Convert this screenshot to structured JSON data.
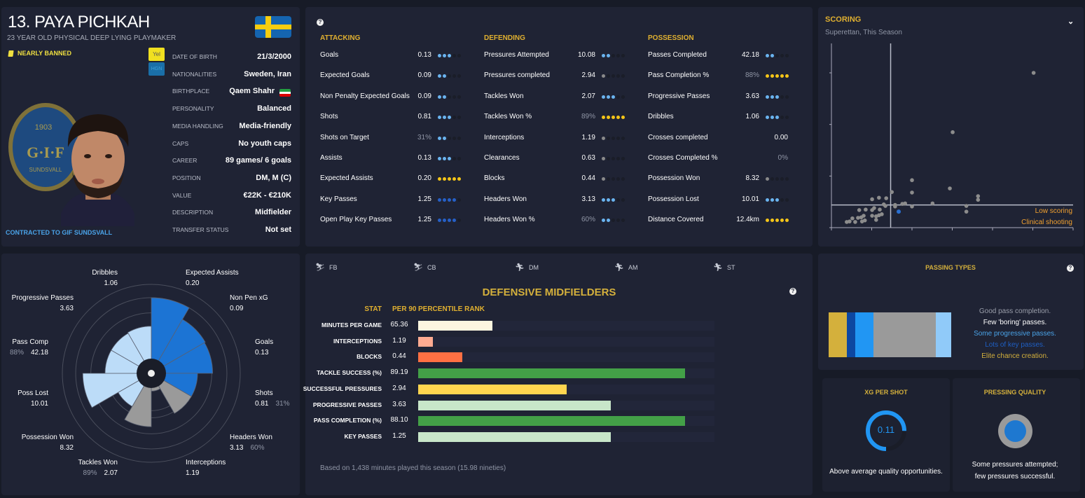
{
  "player": {
    "name": "13. PAYA PICHKAH",
    "subtitle": "23 YEAR OLD PHYSICAL DEEP LYING PLAYMAKER",
    "status": "NEARLY BANNED",
    "badges": [
      "Yel",
      "HGN"
    ],
    "contract": "CONTRACTED TO GIF SUNDSVALL",
    "club_badge_text": [
      "1903",
      "G·I·F",
      "SUNDSVALL"
    ],
    "info": [
      {
        "label": "DATE OF BIRTH",
        "value": "21/3/2000"
      },
      {
        "label": "NATIONALITIES",
        "value": "Sweden, Iran"
      },
      {
        "label": "BIRTHPLACE",
        "value": "Qaem Shahr"
      },
      {
        "label": "PERSONALITY",
        "value": "Balanced"
      },
      {
        "label": "MEDIA HANDLING",
        "value": "Media-friendly"
      },
      {
        "label": "CAPS",
        "value": "No youth caps"
      },
      {
        "label": "CAREER",
        "value": "89   games/    6 goals"
      },
      {
        "label": "POSITION",
        "value": "DM, M (C)"
      },
      {
        "label": "VALUE",
        "value": "€22K - €210K"
      },
      {
        "label": "DESCRIPTION",
        "value": "Midfielder"
      },
      {
        "label": "TRANSFER STATUS",
        "value": "Not set"
      }
    ]
  },
  "colors": {
    "lightblue": "#6ab4f0",
    "gold": "#f5c518",
    "grey": "#8a8a8a",
    "darkblue": "#2660c8"
  },
  "stats": {
    "help": "?",
    "columns": [
      {
        "title": "ATTACKING",
        "rows": [
          {
            "label": "Goals",
            "value": "0.13",
            "rating": 3,
            "tier": "lightblue"
          },
          {
            "label": "Expected Goals",
            "value": "0.09",
            "rating": 2,
            "tier": "lightblue"
          },
          {
            "label": "Non Penalty Expected Goals",
            "value": "0.09",
            "rating": 2,
            "tier": "lightblue"
          },
          {
            "label": "Shots",
            "value": "0.81",
            "rating": 3,
            "tier": "lightblue"
          },
          {
            "label": "Shots on Target",
            "value": "31%",
            "muted": true,
            "rating": 2,
            "tier": "lightblue"
          },
          {
            "label": "Assists",
            "value": "0.13",
            "rating": 3,
            "tier": "lightblue"
          },
          {
            "label": "Expected Assists",
            "value": "0.20",
            "rating": 5,
            "tier": "gold"
          },
          {
            "label": "Key Passes",
            "value": "1.25",
            "rating": 4,
            "tier": "darkblue"
          },
          {
            "label": "Open Play Key Passes",
            "value": "1.25",
            "rating": 4,
            "tier": "darkblue"
          }
        ]
      },
      {
        "title": "DEFENDING",
        "rows": [
          {
            "label": "Pressures Attempted",
            "value": "10.08",
            "rating": 2,
            "tier": "lightblue"
          },
          {
            "label": "Pressures completed",
            "value": "2.94",
            "rating": 1,
            "tier": "grey"
          },
          {
            "label": "Tackles Won",
            "value": "2.07",
            "rating": 3,
            "tier": "lightblue"
          },
          {
            "label": "Tackles Won %",
            "value": "89%",
            "muted": true,
            "rating": 5,
            "tier": "gold"
          },
          {
            "label": "Interceptions",
            "value": "1.19",
            "rating": 1,
            "tier": "grey"
          },
          {
            "label": "Clearances",
            "value": "0.63",
            "rating": 1,
            "tier": "grey"
          },
          {
            "label": "Blocks",
            "value": "0.44",
            "rating": 1,
            "tier": "grey"
          },
          {
            "label": "Headers Won",
            "value": "3.13",
            "rating": 3,
            "tier": "lightblue"
          },
          {
            "label": "Headers Won %",
            "value": "60%",
            "muted": true,
            "rating": 2,
            "tier": "lightblue"
          }
        ]
      },
      {
        "title": "POSSESSION",
        "rows": [
          {
            "label": "Passes Completed",
            "value": "42.18",
            "rating": 2,
            "tier": "lightblue"
          },
          {
            "label": "Pass Completion %",
            "value": "88%",
            "muted": true,
            "rating": 5,
            "tier": "gold"
          },
          {
            "label": "Progressive Passes",
            "value": "3.63",
            "rating": 3,
            "tier": "lightblue"
          },
          {
            "label": "Dribbles",
            "value": "1.06",
            "rating": 3,
            "tier": "lightblue"
          },
          {
            "label": "Crosses completed",
            "value": "0.00",
            "rating": 0,
            "tier": "none"
          },
          {
            "label": "Crosses Completed %",
            "value": "0%",
            "muted": true,
            "rating": 0,
            "tier": "none"
          },
          {
            "label": "Possession Won",
            "value": "8.32",
            "rating": 1,
            "tier": "grey"
          },
          {
            "label": "Possession Lost",
            "value": "10.01",
            "rating": 3,
            "tier": "lightblue"
          },
          {
            "label": "Distance Covered",
            "value": "12.4km",
            "rating": 5,
            "tier": "gold"
          }
        ]
      }
    ]
  },
  "scoring": {
    "title": "SCORING",
    "subtitle": "Superettan, This Season",
    "quadrant_labels": [
      "Low scoring",
      "Clinical shooting"
    ]
  },
  "chart_data": [
    {
      "type": "scatter",
      "title": "SCORING",
      "xlim": [
        0,
        6
      ],
      "ylim": [
        0,
        3.57
      ],
      "x_ticks": [
        0,
        1,
        2,
        3,
        4,
        5,
        6
      ],
      "y_ticks": [
        0,
        1,
        2,
        3
      ],
      "reference_x": 1.47,
      "reference_y": 0.44,
      "points": [
        [
          5.02,
          3.0
        ],
        [
          3.01,
          1.85
        ],
        [
          2.0,
          0.92
        ],
        [
          2.0,
          0.68
        ],
        [
          2.94,
          0.76
        ],
        [
          3.64,
          0.61
        ],
        [
          3.64,
          0.54
        ],
        [
          3.35,
          0.42
        ],
        [
          3.35,
          0.31
        ],
        [
          2.51,
          0.47
        ],
        [
          2.0,
          0.41
        ],
        [
          1.83,
          0.47
        ],
        [
          1.76,
          0.46
        ],
        [
          1.58,
          0.41
        ],
        [
          1.58,
          0.44
        ],
        [
          1.5,
          0.69
        ],
        [
          1.36,
          0.57
        ],
        [
          1.18,
          0.58
        ],
        [
          1.01,
          0.55
        ],
        [
          1.3,
          0.45
        ],
        [
          1.34,
          0.42
        ],
        [
          1.06,
          0.38
        ],
        [
          1.01,
          0.34
        ],
        [
          1.2,
          0.35
        ],
        [
          0.85,
          0.35
        ],
        [
          0.69,
          0.34
        ],
        [
          1.25,
          0.26
        ],
        [
          1.18,
          0.24
        ],
        [
          1.11,
          0.22
        ],
        [
          1.01,
          0.23
        ],
        [
          1.11,
          0.15
        ],
        [
          0.8,
          0.23
        ],
        [
          0.74,
          0.2
        ],
        [
          0.66,
          0.19
        ],
        [
          0.83,
          0.14
        ],
        [
          0.76,
          0.12
        ],
        [
          0.52,
          0.18
        ],
        [
          0.59,
          0.11
        ],
        [
          0.45,
          0.12
        ],
        [
          0.38,
          0.11
        ]
      ],
      "highlight": [
        1.67,
        0.31
      ]
    },
    {
      "type": "pie",
      "subtype": "polar-area",
      "segments": [
        {
          "name": "Expected Assists",
          "value": "0.20",
          "percentile": 0.85,
          "color": "#1c74d4"
        },
        {
          "name": "Non Pen xG",
          "value": "0.09",
          "percentile": 0.7,
          "color": "#1c74d4"
        },
        {
          "name": "Goals",
          "value": "0.13",
          "percentile": 0.69,
          "color": "#1c74d4"
        },
        {
          "name": "Shots",
          "value": "0.81",
          "extra": "31%",
          "percentile": 0.52,
          "color": "#1c74d4"
        },
        {
          "name": "Headers Won",
          "value": "3.13",
          "extra": "60%",
          "percentile": 0.52,
          "color": "#9a9a9a"
        },
        {
          "name": "Interceptions",
          "value": "1.19",
          "percentile": 0.2,
          "color": "#9a9a9a"
        },
        {
          "name": "Tackles Won",
          "value": "2.07",
          "extra": "89%",
          "percentile": 0.6,
          "color": "#9a9a9a"
        },
        {
          "name": "Possession Won",
          "value": "8.32",
          "percentile": 0.43,
          "color": "#bcdcf8"
        },
        {
          "name": "Poss Lost",
          "value": "10.01",
          "percentile": 0.77,
          "color": "#bcdcf8"
        },
        {
          "name": "Pass Comp",
          "value": "42.18",
          "extra": "88%",
          "percentile": 0.52,
          "color": "#bcdcf8"
        },
        {
          "name": "Progressive Passes",
          "value": "3.63",
          "percentile": 0.52,
          "color": "#bcdcf8"
        },
        {
          "name": "Dribbles",
          "value": "1.06",
          "percentile": 0.53,
          "color": "#bcdcf8"
        }
      ]
    },
    {
      "type": "bar",
      "title": "DEFENSIVE MIDFIELDERS",
      "headers": [
        "STAT",
        "PER 90",
        "PERCENTILE RANK"
      ],
      "rows": [
        {
          "stat": "MINUTES PER GAME",
          "value": "65.36",
          "percentile": 25,
          "color": "#fdf6e0"
        },
        {
          "stat": "INTERCEPTIONS",
          "value": "1.19",
          "percentile": 5,
          "color": "#ffab91"
        },
        {
          "stat": "BLOCKS",
          "value": "0.44",
          "percentile": 15,
          "color": "#ff7043"
        },
        {
          "stat": "TACKLE SUCCESS (%)",
          "value": "89.19",
          "percentile": 90,
          "color": "#43a047"
        },
        {
          "stat": "SUCCESSFUL PRESSURES",
          "value": "2.94",
          "percentile": 50,
          "color": "#ffd54f"
        },
        {
          "stat": "PROGRESSIVE PASSES",
          "value": "3.63",
          "percentile": 65,
          "color": "#c8e6c9"
        },
        {
          "stat": "PASS COMPLETION (%)",
          "value": "88.10",
          "percentile": 90,
          "color": "#43a047"
        },
        {
          "stat": "KEY PASSES",
          "value": "1.25",
          "percentile": 65,
          "color": "#c8e6c9"
        }
      ],
      "xlim": [
        0,
        100
      ]
    }
  ],
  "positions": [
    "FB",
    "CB",
    "DM",
    "AM",
    "ST"
  ],
  "percentile": {
    "footer": "Based on 1,438 minutes played this season (15.98 nineties)"
  },
  "passing_types": {
    "title": "PASSING TYPES",
    "segments": [
      {
        "share": 0.149,
        "color": "#d4b03c"
      },
      {
        "share": 0.069,
        "color": "#0d47a1"
      },
      {
        "share": 0.149,
        "color": "#2196f3"
      },
      {
        "share": 0.507,
        "color": "#9a9a9a"
      },
      {
        "share": 0.126,
        "color": "#90caf9"
      }
    ],
    "lines": [
      {
        "text": "Good pass completion.",
        "color": "#9a9eaa"
      },
      {
        "text": "Few 'boring' passes.",
        "color": "#ffffff"
      },
      {
        "text": "Some progressive passes.",
        "color": "#4aa3e8"
      },
      {
        "text": "Lots of key passes.",
        "color": "#1f5fc4"
      },
      {
        "text": "Elite chance creation.",
        "color": "#d4b03c"
      }
    ]
  },
  "xg_per_shot": {
    "title": "XG PER SHOT",
    "value": "0.11",
    "fill": 0.75,
    "caption": "Above average quality opportunities."
  },
  "pressing": {
    "title": "PRESSING QUALITY",
    "caption1": "Some pressures attempted;",
    "caption2": "few pressures successful."
  }
}
